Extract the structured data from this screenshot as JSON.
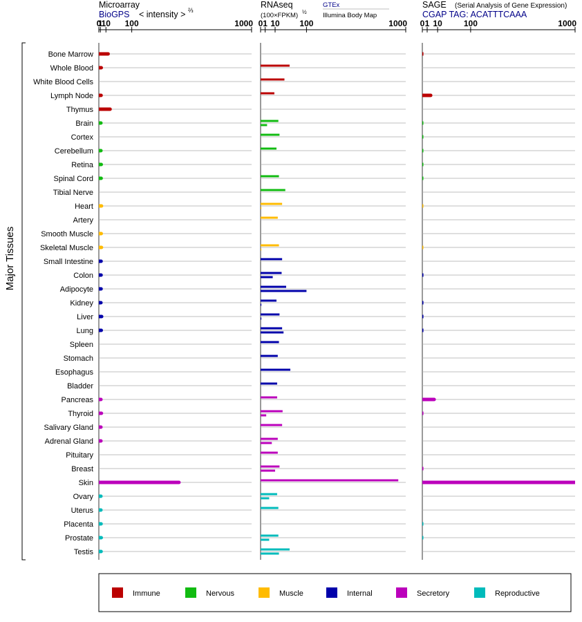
{
  "colors": {
    "Immune": "#bb0000",
    "Nervous": "#11bb11",
    "Muscle": "#ffbb00",
    "Internal": "#0000aa",
    "Secretory": "#bb00bb",
    "Reproductive": "#00bbbb",
    "link": "#000088",
    "row_line": "#aaaaaa"
  },
  "axis_label": "Major Tissues",
  "legend": [
    "Immune",
    "Nervous",
    "Muscle",
    "Internal",
    "Secretory",
    "Reproductive"
  ],
  "panels": {
    "microarray": {
      "title": "Microarray",
      "source": "BioGPS",
      "units_main": "< intensity >",
      "units_sup": "⅔"
    },
    "rnaseq": {
      "title": "RNAseq",
      "units_main": "(100×FPKM)",
      "units_sup": "½",
      "source_top": "GTEx",
      "source_bottom": "Illumina Body Map"
    },
    "sage": {
      "title": "SAGE",
      "subtitle": "(Serial Analysis of Gene Expression)",
      "source": "CGAP TAG: ACATTTCAAA"
    }
  },
  "chart_data": {
    "type": "bar",
    "orientation": "horizontal",
    "scale": "power-scaled (microarray ⅔, RNAseq ½)",
    "xticks": [
      "0",
      "1",
      "10",
      "100",
      "1000"
    ],
    "xlim": [
      0,
      1000
    ],
    "tissues": [
      {
        "name": "Bone Marrow",
        "system": "Immune",
        "microarray": 15,
        "rnaseq": [],
        "sage": 0.05
      },
      {
        "name": "Whole Blood",
        "system": "Immune",
        "microarray": 2,
        "rnaseq": [
          40
        ],
        "sage": null
      },
      {
        "name": "White Blood Cells",
        "system": "Immune",
        "microarray": null,
        "rnaseq": [
          27
        ],
        "sage": null
      },
      {
        "name": "Lymph Node",
        "system": "Immune",
        "microarray": 1.8,
        "rnaseq": [
          9
        ],
        "sage": 3
      },
      {
        "name": "Thymus",
        "system": "Immune",
        "microarray": 20,
        "rnaseq": [],
        "sage": null
      },
      {
        "name": "Brain",
        "system": "Nervous",
        "microarray": 1.6,
        "rnaseq": [
          15,
          2
        ],
        "sage": 0.03
      },
      {
        "name": "Cortex",
        "system": "Nervous",
        "microarray": null,
        "rnaseq": [
          17
        ],
        "sage": 0.03
      },
      {
        "name": "Cerebellum",
        "system": "Nervous",
        "microarray": 1.6,
        "rnaseq": [
          12
        ],
        "sage": 0.03
      },
      {
        "name": "Retina",
        "system": "Nervous",
        "microarray": 2,
        "rnaseq": [],
        "sage": 0.03
      },
      {
        "name": "Spinal Cord",
        "system": "Nervous",
        "microarray": 1.9,
        "rnaseq": [
          16
        ],
        "sage": 0.03
      },
      {
        "name": "Tibial Nerve",
        "system": "Nervous",
        "microarray": null,
        "rnaseq": [
          29
        ],
        "sage": null
      },
      {
        "name": "Heart",
        "system": "Muscle",
        "microarray": 2.3,
        "rnaseq": [
          22,
          0.03
        ],
        "sage": 0.03
      },
      {
        "name": "Artery",
        "system": "Muscle",
        "microarray": null,
        "rnaseq": [
          14
        ],
        "sage": null
      },
      {
        "name": "Smooth Muscle",
        "system": "Muscle",
        "microarray": 2,
        "rnaseq": [],
        "sage": null
      },
      {
        "name": "Skeletal Muscle",
        "system": "Muscle",
        "microarray": 2.3,
        "rnaseq": [
          16,
          0.03
        ],
        "sage": 0.03
      },
      {
        "name": "Small Intestine",
        "system": "Internal",
        "microarray": 1.8,
        "rnaseq": [
          22
        ],
        "sage": null
      },
      {
        "name": "Colon",
        "system": "Internal",
        "microarray": 1.8,
        "rnaseq": [
          21,
          7
        ],
        "sage": 0.05
      },
      {
        "name": "Adipocyte",
        "system": "Internal",
        "microarray": 1.8,
        "rnaseq": [
          31,
          100
        ],
        "sage": null
      },
      {
        "name": "Kidney",
        "system": "Internal",
        "microarray": 1.6,
        "rnaseq": [
          12,
          0.03
        ],
        "sage": 0.05
      },
      {
        "name": "Liver",
        "system": "Internal",
        "microarray": 2.5,
        "rnaseq": [
          17,
          0.03
        ],
        "sage": 0.05
      },
      {
        "name": "Lung",
        "system": "Internal",
        "microarray": 2,
        "rnaseq": [
          22,
          25
        ],
        "sage": 0.05
      },
      {
        "name": "Spleen",
        "system": "Internal",
        "microarray": null,
        "rnaseq": [
          16
        ],
        "sage": null
      },
      {
        "name": "Stomach",
        "system": "Internal",
        "microarray": null,
        "rnaseq": [
          14
        ],
        "sage": null
      },
      {
        "name": "Esophagus",
        "system": "Internal",
        "microarray": null,
        "rnaseq": [
          42
        ],
        "sage": null
      },
      {
        "name": "Bladder",
        "system": "Internal",
        "microarray": null,
        "rnaseq": [
          13
        ],
        "sage": null
      },
      {
        "name": "Pancreas",
        "system": "Secretory",
        "microarray": 1.6,
        "rnaseq": [
          13
        ],
        "sage": 6
      },
      {
        "name": "Thyroid",
        "system": "Secretory",
        "microarray": 2.2,
        "rnaseq": [
          23,
          1.5
        ],
        "sage": 0.05
      },
      {
        "name": "Salivary Gland",
        "system": "Secretory",
        "microarray": 1.6,
        "rnaseq": [
          22
        ],
        "sage": null
      },
      {
        "name": "Adrenal Gland",
        "system": "Secretory",
        "microarray": 1.6,
        "rnaseq": [
          14,
          6
        ],
        "sage": null
      },
      {
        "name": "Pituitary",
        "system": "Secretory",
        "microarray": null,
        "rnaseq": [
          14
        ],
        "sage": null
      },
      {
        "name": "Breast",
        "system": "Secretory",
        "microarray": null,
        "rnaseq": [
          17,
          10
        ],
        "sage": 0.05
      },
      {
        "name": "Skin",
        "system": "Secretory",
        "microarray": 380,
        "rnaseq": [
          900
        ],
        "sage": 1000
      },
      {
        "name": "Ovary",
        "system": "Reproductive",
        "microarray": 1.6,
        "rnaseq": [
          13,
          3.5
        ],
        "sage": null
      },
      {
        "name": "Uterus",
        "system": "Reproductive",
        "microarray": 1.6,
        "rnaseq": [
          15
        ],
        "sage": null
      },
      {
        "name": "Placenta",
        "system": "Reproductive",
        "microarray": 1.8,
        "rnaseq": [],
        "sage": 0.03
      },
      {
        "name": "Prostate",
        "system": "Reproductive",
        "microarray": 2,
        "rnaseq": [
          15,
          3.5
        ],
        "sage": 0.03
      },
      {
        "name": "Testis",
        "system": "Reproductive",
        "microarray": 1.8,
        "rnaseq": [
          40,
          16
        ],
        "sage": null
      }
    ]
  }
}
